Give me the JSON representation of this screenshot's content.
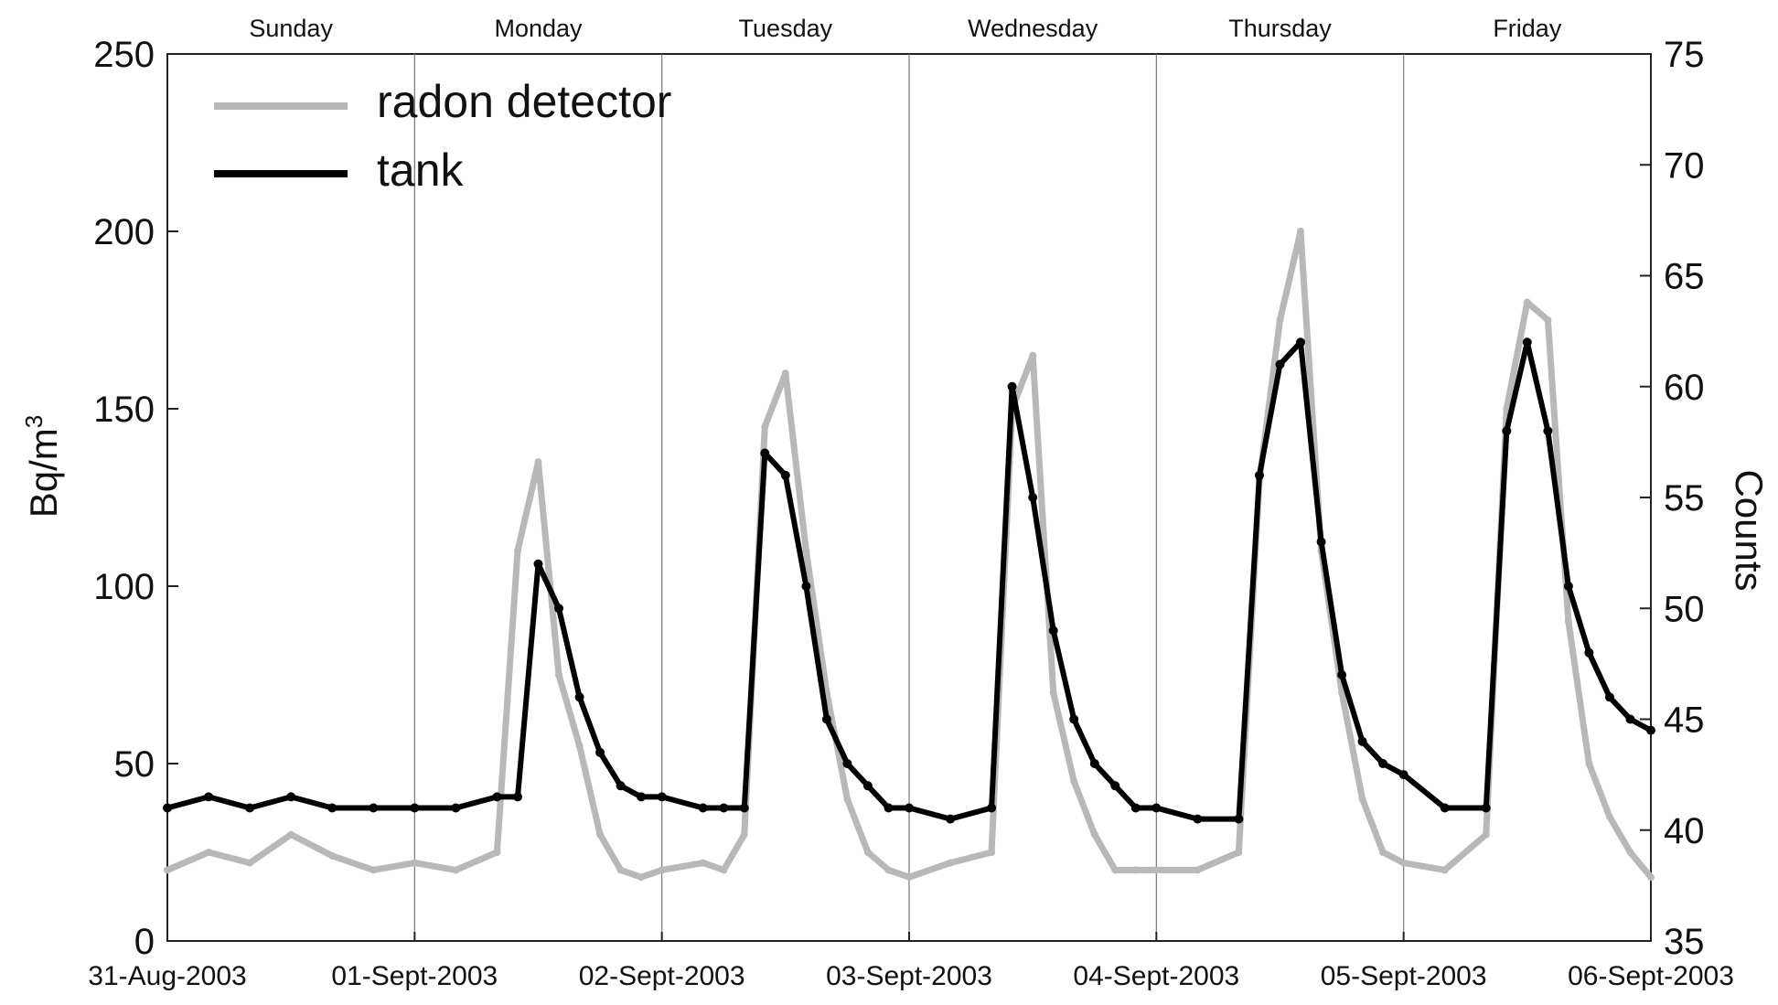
{
  "chart_data": {
    "type": "line",
    "title": "",
    "xlabel": "",
    "ylabel": "Bq/m",
    "ylabel_superscript": "3",
    "y2label": "Counts",
    "ylim": [
      0,
      250
    ],
    "y2lim": [
      35,
      75
    ],
    "yticks": [
      "0",
      "50",
      "100",
      "150",
      "200",
      "250"
    ],
    "y2ticks": [
      "35",
      "40",
      "45",
      "50",
      "55",
      "60",
      "65",
      "70",
      "75"
    ],
    "xlim": [
      "2003-08-31",
      "2003-09-06"
    ],
    "xticks": [
      "31-Aug-2003",
      "01-Sept-2003",
      "02-Sept-2003",
      "03-Sept-2003",
      "04-Sept-2003",
      "05-Sept-2003",
      "06-Sept-2003"
    ],
    "day_labels": [
      "Sunday",
      "Monday",
      "Tuesday",
      "Wednesday",
      "Thursday",
      "Friday"
    ],
    "grid": false,
    "day_dividers": true,
    "legend": {
      "placement": "top-left"
    },
    "series": [
      {
        "name": "radon detector",
        "axis": "left",
        "color": "#b8b8b8",
        "x": [
          "2003-08-31 00:00",
          "2003-08-31 04:00",
          "2003-08-31 08:00",
          "2003-08-31 12:00",
          "2003-08-31 16:00",
          "2003-08-31 20:00",
          "2003-09-01 00:00",
          "2003-09-01 04:00",
          "2003-09-01 08:00",
          "2003-09-01 10:00",
          "2003-09-01 12:00",
          "2003-09-01 14:00",
          "2003-09-01 16:00",
          "2003-09-01 18:00",
          "2003-09-01 20:00",
          "2003-09-01 22:00",
          "2003-09-02 00:00",
          "2003-09-02 04:00",
          "2003-09-02 06:00",
          "2003-09-02 08:00",
          "2003-09-02 10:00",
          "2003-09-02 12:00",
          "2003-09-02 14:00",
          "2003-09-02 16:00",
          "2003-09-02 18:00",
          "2003-09-02 20:00",
          "2003-09-02 22:00",
          "2003-09-03 00:00",
          "2003-09-03 04:00",
          "2003-09-03 08:00",
          "2003-09-03 10:00",
          "2003-09-03 12:00",
          "2003-09-03 14:00",
          "2003-09-03 16:00",
          "2003-09-03 18:00",
          "2003-09-03 20:00",
          "2003-09-03 22:00",
          "2003-09-04 00:00",
          "2003-09-04 04:00",
          "2003-09-04 08:00",
          "2003-09-04 10:00",
          "2003-09-04 12:00",
          "2003-09-04 14:00",
          "2003-09-04 16:00",
          "2003-09-04 18:00",
          "2003-09-04 20:00",
          "2003-09-04 22:00",
          "2003-09-05 00:00",
          "2003-09-05 04:00",
          "2003-09-05 08:00",
          "2003-09-05 10:00",
          "2003-09-05 12:00",
          "2003-09-05 14:00",
          "2003-09-05 16:00",
          "2003-09-05 18:00",
          "2003-09-05 20:00",
          "2003-09-05 22:00",
          "2003-09-06 00:00"
        ],
        "values": [
          20,
          25,
          22,
          30,
          24,
          20,
          22,
          20,
          25,
          110,
          135,
          75,
          55,
          30,
          20,
          18,
          20,
          22,
          20,
          30,
          145,
          160,
          110,
          70,
          40,
          25,
          20,
          18,
          22,
          25,
          150,
          165,
          70,
          45,
          30,
          20,
          20,
          20,
          20,
          25,
          130,
          175,
          200,
          110,
          70,
          40,
          25,
          22,
          20,
          30,
          150,
          180,
          175,
          90,
          50,
          35,
          25,
          18
        ]
      },
      {
        "name": "tank",
        "axis": "right",
        "color": "#000000",
        "x": [
          "2003-08-31 00:00",
          "2003-08-31 04:00",
          "2003-08-31 08:00",
          "2003-08-31 12:00",
          "2003-08-31 16:00",
          "2003-08-31 20:00",
          "2003-09-01 00:00",
          "2003-09-01 04:00",
          "2003-09-01 08:00",
          "2003-09-01 10:00",
          "2003-09-01 12:00",
          "2003-09-01 14:00",
          "2003-09-01 16:00",
          "2003-09-01 18:00",
          "2003-09-01 20:00",
          "2003-09-01 22:00",
          "2003-09-02 00:00",
          "2003-09-02 04:00",
          "2003-09-02 06:00",
          "2003-09-02 08:00",
          "2003-09-02 10:00",
          "2003-09-02 12:00",
          "2003-09-02 14:00",
          "2003-09-02 16:00",
          "2003-09-02 18:00",
          "2003-09-02 20:00",
          "2003-09-02 22:00",
          "2003-09-03 00:00",
          "2003-09-03 04:00",
          "2003-09-03 08:00",
          "2003-09-03 10:00",
          "2003-09-03 12:00",
          "2003-09-03 14:00",
          "2003-09-03 16:00",
          "2003-09-03 18:00",
          "2003-09-03 20:00",
          "2003-09-03 22:00",
          "2003-09-04 00:00",
          "2003-09-04 04:00",
          "2003-09-04 08:00",
          "2003-09-04 10:00",
          "2003-09-04 12:00",
          "2003-09-04 14:00",
          "2003-09-04 16:00",
          "2003-09-04 18:00",
          "2003-09-04 20:00",
          "2003-09-04 22:00",
          "2003-09-05 00:00",
          "2003-09-05 04:00",
          "2003-09-05 08:00",
          "2003-09-05 10:00",
          "2003-09-05 12:00",
          "2003-09-05 14:00",
          "2003-09-05 16:00",
          "2003-09-05 18:00",
          "2003-09-05 20:00",
          "2003-09-05 22:00",
          "2003-09-06 00:00"
        ],
        "values": [
          41,
          41.5,
          41,
          41.5,
          41,
          41,
          41,
          41,
          41.5,
          41.5,
          52,
          50,
          46,
          43.5,
          42,
          41.5,
          41.5,
          41,
          41,
          41,
          57,
          56,
          51,
          45,
          43,
          42,
          41,
          41,
          40.5,
          41,
          60,
          55,
          49,
          45,
          43,
          42,
          41,
          41,
          40.5,
          40.5,
          56,
          61,
          62,
          53,
          47,
          44,
          43,
          42.5,
          41,
          41,
          58,
          62,
          58,
          51,
          48,
          46,
          45,
          44.5
        ]
      }
    ]
  }
}
